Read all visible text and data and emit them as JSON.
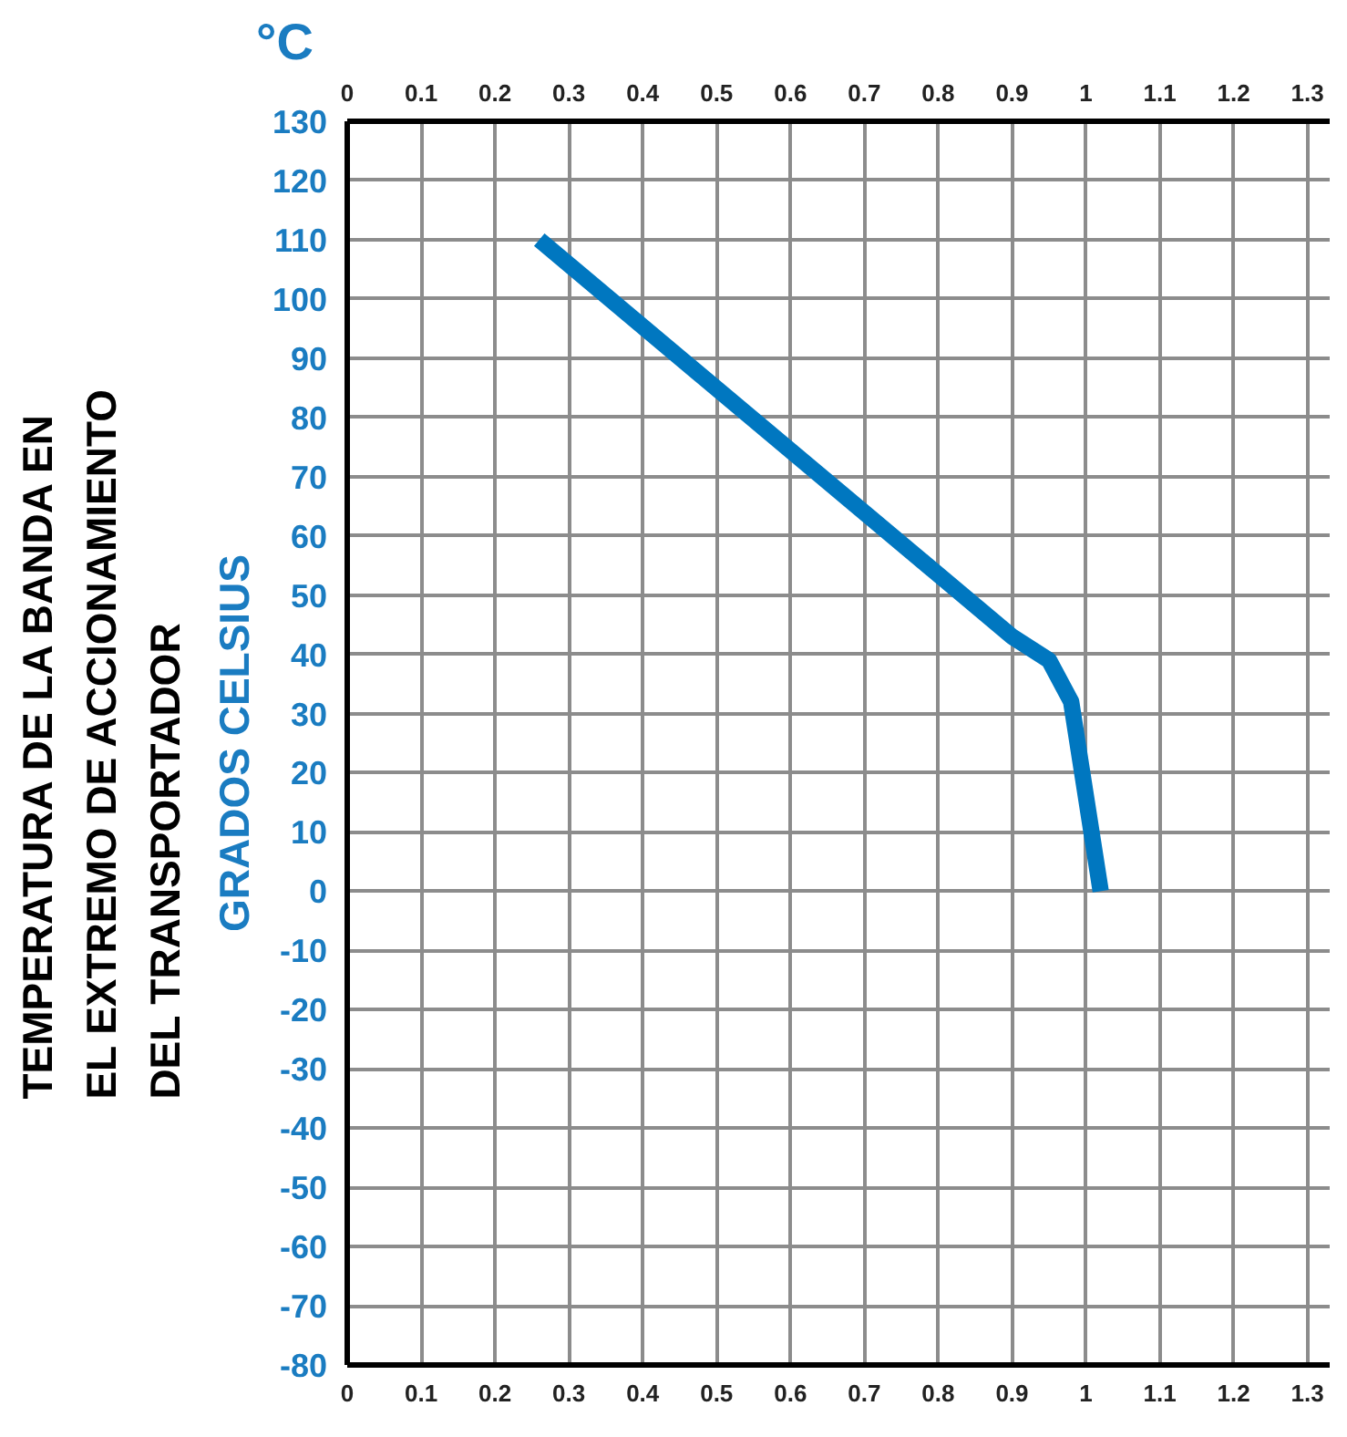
{
  "chart_data": {
    "type": "line",
    "ylabel": "TEMPERATURA DE LA BANDA EN\nEL EXTREMO DE ACCIONAMIENTO\nDEL TRANSPORTADOR",
    "annotations": [
      "°C",
      "GRADOS CELSIUS"
    ],
    "x": [
      0.26,
      0.9,
      0.95,
      0.98,
      1.02
    ],
    "series": [
      {
        "color": "#0077c0",
        "values": [
          110,
          43,
          39,
          32,
          0
        ]
      }
    ],
    "xlim": [
      0,
      1.33
    ],
    "xticks": [
      0,
      0.1,
      0.2,
      0.3,
      0.4,
      0.5,
      0.6,
      0.7,
      0.8,
      0.9,
      1,
      1.1,
      1.2,
      1.3
    ],
    "x2lim": [
      0,
      1.33
    ],
    "x2ticks": [
      0,
      0.1,
      0.2,
      0.3,
      0.4,
      0.5,
      0.6,
      0.7,
      0.8,
      0.9,
      1,
      1.1,
      1.2,
      1.3
    ],
    "ylim": [
      -80,
      130
    ],
    "yticks": [
      -80,
      -70,
      -60,
      -50,
      -40,
      -30,
      -20,
      -10,
      0,
      10,
      20,
      30,
      40,
      50,
      60,
      70,
      80,
      90,
      100,
      110,
      120,
      130
    ],
    "grid": true,
    "line_style": "solid"
  }
}
